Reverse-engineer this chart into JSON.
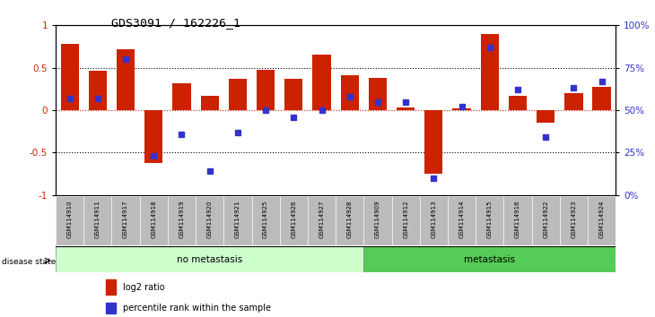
{
  "title": "GDS3091 / 162226_1",
  "samples": [
    "GSM114910",
    "GSM114911",
    "GSM114917",
    "GSM114918",
    "GSM114919",
    "GSM114920",
    "GSM114921",
    "GSM114925",
    "GSM114926",
    "GSM114927",
    "GSM114928",
    "GSM114909",
    "GSM114912",
    "GSM114913",
    "GSM114914",
    "GSM114915",
    "GSM114916",
    "GSM114922",
    "GSM114923",
    "GSM114924"
  ],
  "log2_ratio": [
    0.78,
    0.46,
    0.72,
    -0.62,
    0.32,
    0.17,
    0.37,
    0.48,
    0.37,
    0.65,
    0.41,
    0.38,
    0.03,
    -0.75,
    0.02,
    0.9,
    0.17,
    -0.15,
    0.2,
    0.28
  ],
  "percentile": [
    57,
    57,
    80,
    23,
    36,
    14,
    37,
    50,
    46,
    50,
    58,
    55,
    55,
    10,
    52,
    87,
    62,
    34,
    63,
    67
  ],
  "no_metastasis_count": 11,
  "metastasis_count": 9,
  "bar_color": "#cc2200",
  "dot_color": "#3333cc",
  "no_metastasis_color": "#ccffcc",
  "metastasis_color": "#55cc55",
  "label_bg_color": "#bbbbbb",
  "ylim_left": [
    -1.0,
    1.0
  ],
  "ylim_right": [
    0,
    100
  ],
  "yticks_left": [
    -1.0,
    -0.5,
    0.0,
    0.5,
    1.0
  ],
  "yticks_right": [
    0,
    25,
    50,
    75,
    100
  ],
  "ytick_labels_left": [
    "-1",
    "-0.5",
    "0",
    "0.5",
    "1"
  ],
  "ytick_labels_right": [
    "0%",
    "25%",
    "50%",
    "75%",
    "100%"
  ],
  "legend_log2": "log2 ratio",
  "legend_pct": "percentile rank within the sample"
}
